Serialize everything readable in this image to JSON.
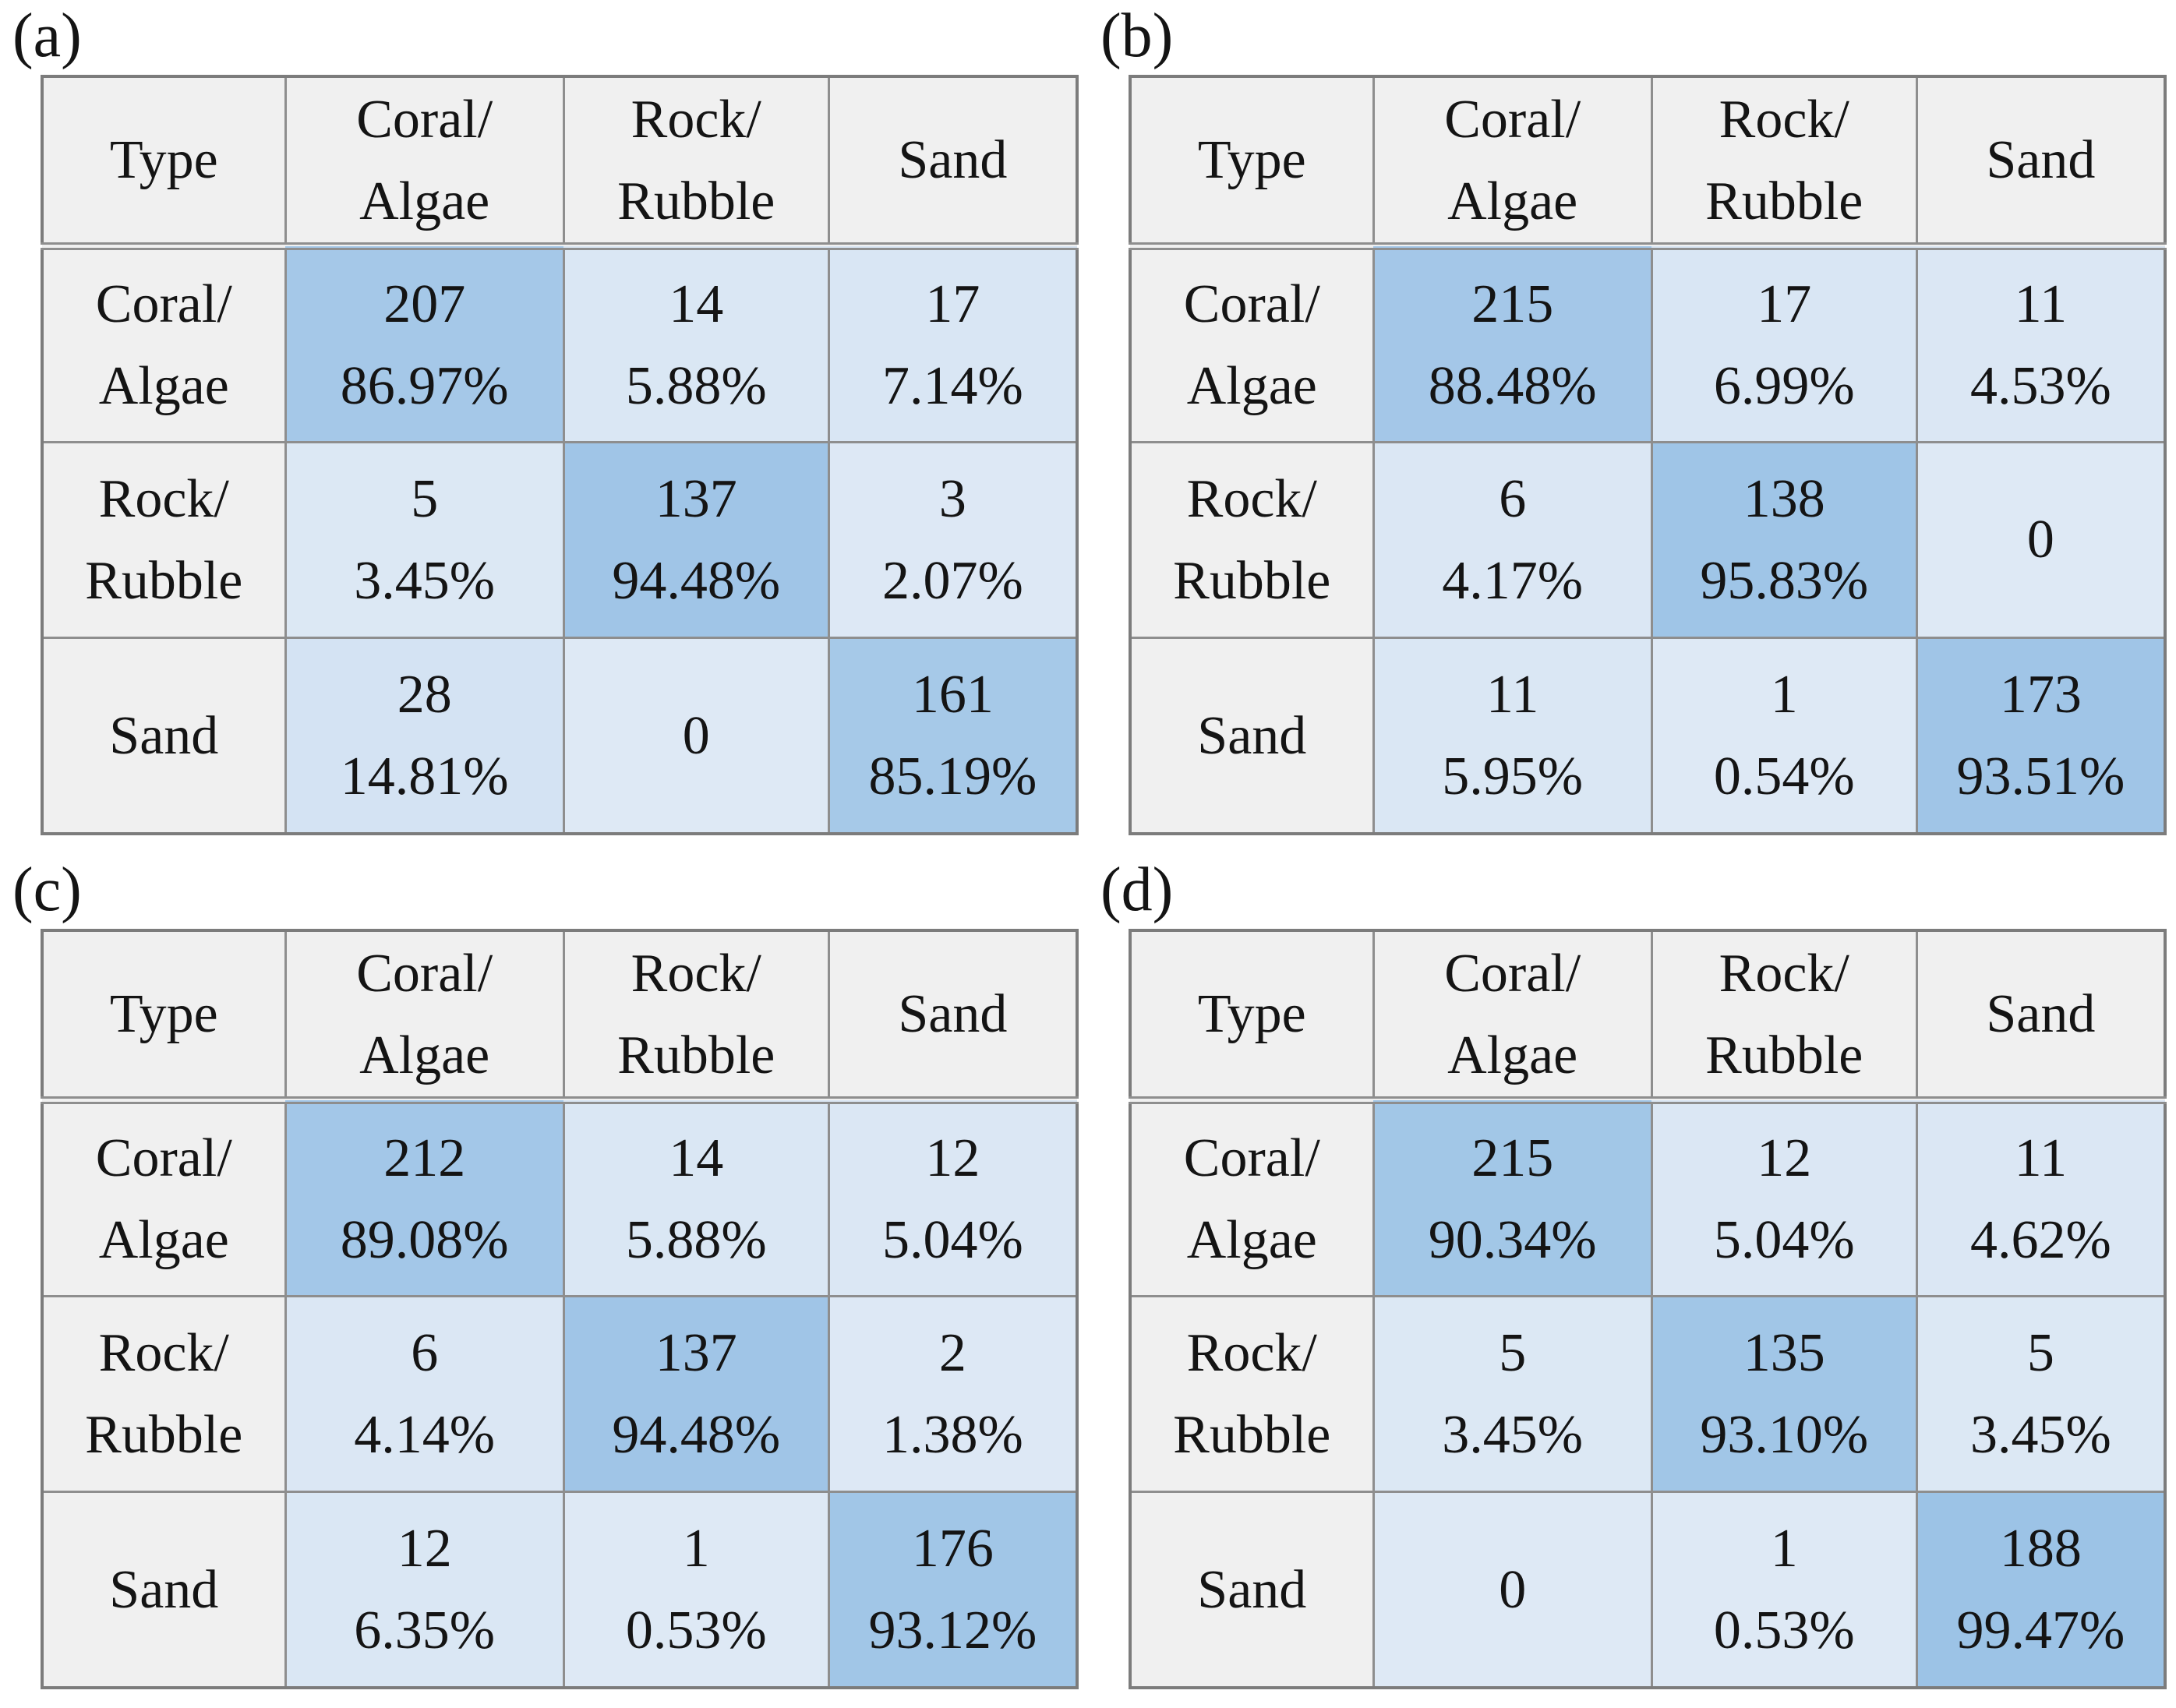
{
  "colors": {
    "page_bg": "#FFFFFF",
    "header_bg": "#F0F0F0",
    "grid_border": "#8E8E8E",
    "outer_border": "#7C7C7C",
    "text": "#141414",
    "cell_zero_pct": "#DEE9F5",
    "cell_full_pct": "#9CC3E6"
  },
  "tables": [
    {
      "label": "(a)",
      "headers": [
        "Type",
        "Coral/\nAlgae",
        "Rock/\nRubble",
        "Sand"
      ],
      "rows": [
        {
          "label": "Coral/\nAlgae",
          "cells": [
            {
              "count": "207",
              "pct": "86.97%"
            },
            {
              "count": "14",
              "pct": "5.88%"
            },
            {
              "count": "17",
              "pct": "7.14%"
            }
          ]
        },
        {
          "label": "Rock/\nRubble",
          "cells": [
            {
              "count": "5",
              "pct": "3.45%"
            },
            {
              "count": "137",
              "pct": "94.48%"
            },
            {
              "count": "3",
              "pct": "2.07%"
            }
          ]
        },
        {
          "label": "Sand",
          "cells": [
            {
              "count": "28",
              "pct": "14.81%"
            },
            {
              "count": "0",
              "pct": ""
            },
            {
              "count": "161",
              "pct": "85.19%"
            }
          ]
        }
      ]
    },
    {
      "label": "(b)",
      "headers": [
        "Type",
        "Coral/\nAlgae",
        "Rock/\nRubble",
        "Sand"
      ],
      "rows": [
        {
          "label": "Coral/\nAlgae",
          "cells": [
            {
              "count": "215",
              "pct": "88.48%"
            },
            {
              "count": "17",
              "pct": "6.99%"
            },
            {
              "count": "11",
              "pct": "4.53%"
            }
          ]
        },
        {
          "label": "Rock/\nRubble",
          "cells": [
            {
              "count": "6",
              "pct": "4.17%"
            },
            {
              "count": "138",
              "pct": "95.83%"
            },
            {
              "count": "0",
              "pct": ""
            }
          ]
        },
        {
          "label": "Sand",
          "cells": [
            {
              "count": "11",
              "pct": "5.95%"
            },
            {
              "count": "1",
              "pct": "0.54%"
            },
            {
              "count": "173",
              "pct": "93.51%"
            }
          ]
        }
      ]
    },
    {
      "label": "(c)",
      "headers": [
        "Type",
        "Coral/\nAlgae",
        "Rock/\nRubble",
        "Sand"
      ],
      "rows": [
        {
          "label": "Coral/\nAlgae",
          "cells": [
            {
              "count": "212",
              "pct": "89.08%"
            },
            {
              "count": "14",
              "pct": "5.88%"
            },
            {
              "count": "12",
              "pct": "5.04%"
            }
          ]
        },
        {
          "label": "Rock/\nRubble",
          "cells": [
            {
              "count": "6",
              "pct": "4.14%"
            },
            {
              "count": "137",
              "pct": "94.48%"
            },
            {
              "count": "2",
              "pct": "1.38%"
            }
          ]
        },
        {
          "label": "Sand",
          "cells": [
            {
              "count": "12",
              "pct": "6.35%"
            },
            {
              "count": "1",
              "pct": "0.53%"
            },
            {
              "count": "176",
              "pct": "93.12%"
            }
          ]
        }
      ]
    },
    {
      "label": "(d)",
      "headers": [
        "Type",
        "Coral/\nAlgae",
        "Rock/\nRubble",
        "Sand"
      ],
      "rows": [
        {
          "label": "Coral/\nAlgae",
          "cells": [
            {
              "count": "215",
              "pct": "90.34%"
            },
            {
              "count": "12",
              "pct": "5.04%"
            },
            {
              "count": "11",
              "pct": "4.62%"
            }
          ]
        },
        {
          "label": "Rock/\nRubble",
          "cells": [
            {
              "count": "5",
              "pct": "3.45%"
            },
            {
              "count": "135",
              "pct": "93.10%"
            },
            {
              "count": "5",
              "pct": "3.45%"
            }
          ]
        },
        {
          "label": "Sand",
          "cells": [
            {
              "count": "0",
              "pct": ""
            },
            {
              "count": "1",
              "pct": "0.53%"
            },
            {
              "count": "188",
              "pct": "99.47%"
            }
          ]
        }
      ]
    }
  ],
  "chart_data": [
    {
      "type": "heatmap",
      "title": "(a)",
      "corner_label": "Type",
      "categories": [
        "Coral/Algae",
        "Rock/Rubble",
        "Sand"
      ],
      "counts": [
        [
          207,
          14,
          17
        ],
        [
          5,
          137,
          3
        ],
        [
          28,
          0,
          161
        ]
      ],
      "row_percent": [
        [
          86.97,
          5.88,
          7.14
        ],
        [
          3.45,
          94.48,
          2.07
        ],
        [
          14.81,
          0,
          85.19
        ]
      ]
    },
    {
      "type": "heatmap",
      "title": "(b)",
      "corner_label": "Type",
      "categories": [
        "Coral/Algae",
        "Rock/Rubble",
        "Sand"
      ],
      "counts": [
        [
          215,
          17,
          11
        ],
        [
          6,
          138,
          0
        ],
        [
          11,
          1,
          173
        ]
      ],
      "row_percent": [
        [
          88.48,
          6.99,
          4.53
        ],
        [
          4.17,
          95.83,
          0
        ],
        [
          5.95,
          0.54,
          93.51
        ]
      ]
    },
    {
      "type": "heatmap",
      "title": "(c)",
      "corner_label": "Type",
      "categories": [
        "Coral/Algae",
        "Rock/Rubble",
        "Sand"
      ],
      "counts": [
        [
          212,
          14,
          12
        ],
        [
          6,
          137,
          2
        ],
        [
          12,
          1,
          176
        ]
      ],
      "row_percent": [
        [
          89.08,
          5.88,
          5.04
        ],
        [
          4.14,
          94.48,
          1.38
        ],
        [
          6.35,
          0.53,
          93.12
        ]
      ]
    },
    {
      "type": "heatmap",
      "title": "(d)",
      "corner_label": "Type",
      "categories": [
        "Coral/Algae",
        "Rock/Rubble",
        "Sand"
      ],
      "counts": [
        [
          215,
          12,
          11
        ],
        [
          5,
          135,
          5
        ],
        [
          0,
          1,
          188
        ]
      ],
      "row_percent": [
        [
          90.34,
          5.04,
          4.62
        ],
        [
          3.45,
          93.1,
          3.45
        ],
        [
          0,
          0.53,
          99.47
        ]
      ]
    }
  ]
}
